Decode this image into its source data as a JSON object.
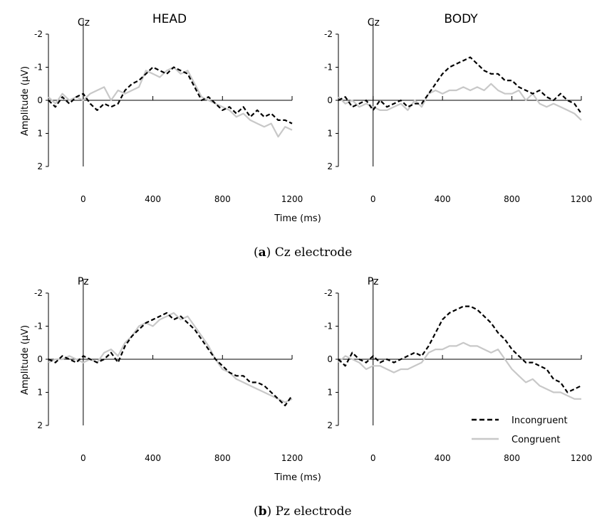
{
  "figure": {
    "column_titles": [
      "HEAD",
      "BODY"
    ],
    "y_axis_label": "Amplitude (μV)",
    "x_axis_label": "Time (ms)",
    "captions": [
      {
        "letter": "a",
        "text": "Cz electrode"
      },
      {
        "letter": "b",
        "text": "Pz electrode"
      }
    ],
    "legend": [
      {
        "label": "Incongruent",
        "style": "dashed",
        "color": "#000000"
      },
      {
        "label": "Congruent",
        "style": "solid",
        "color": "#c8c8c8"
      }
    ]
  },
  "chart_data": [
    {
      "type": "line",
      "electrode": "Cz",
      "column": "HEAD",
      "xlim": [
        -200,
        1200
      ],
      "ylim": [
        -2,
        2
      ],
      "y_inverted": true,
      "x_ticks": [
        0,
        400,
        800,
        1200
      ],
      "y_ticks": [
        -2,
        -1,
        0,
        1,
        2
      ],
      "x": [
        -200,
        -160,
        -120,
        -80,
        -40,
        0,
        40,
        80,
        120,
        160,
        200,
        240,
        280,
        320,
        360,
        400,
        440,
        480,
        520,
        560,
        600,
        640,
        680,
        720,
        760,
        800,
        840,
        880,
        920,
        960,
        1000,
        1040,
        1080,
        1120,
        1160,
        1200
      ],
      "series": [
        {
          "name": "Incongruent",
          "values": [
            0.0,
            0.2,
            -0.1,
            0.1,
            -0.1,
            -0.2,
            0.1,
            0.3,
            0.1,
            0.2,
            0.1,
            -0.3,
            -0.5,
            -0.6,
            -0.8,
            -1.0,
            -0.9,
            -0.8,
            -1.0,
            -0.9,
            -0.8,
            -0.4,
            0.0,
            -0.1,
            0.1,
            0.3,
            0.2,
            0.4,
            0.2,
            0.5,
            0.3,
            0.5,
            0.4,
            0.6,
            0.6,
            0.7
          ]
        },
        {
          "name": "Congruent",
          "values": [
            -0.1,
            0.1,
            -0.2,
            0.0,
            -0.1,
            0.0,
            -0.2,
            -0.3,
            -0.4,
            0.0,
            -0.3,
            -0.2,
            -0.3,
            -0.4,
            -0.9,
            -0.8,
            -0.7,
            -0.9,
            -1.0,
            -0.8,
            -0.9,
            -0.5,
            -0.1,
            0.0,
            0.1,
            0.2,
            0.3,
            0.5,
            0.4,
            0.6,
            0.7,
            0.8,
            0.7,
            1.1,
            0.8,
            0.9
          ]
        }
      ]
    },
    {
      "type": "line",
      "electrode": "Cz",
      "column": "BODY",
      "xlim": [
        -200,
        1200
      ],
      "ylim": [
        -2,
        2
      ],
      "y_inverted": true,
      "x_ticks": [
        0,
        400,
        800,
        1200
      ],
      "y_ticks": [
        -2,
        -1,
        0,
        1,
        2
      ],
      "x": [
        -200,
        -160,
        -120,
        -80,
        -40,
        0,
        40,
        80,
        120,
        160,
        200,
        240,
        280,
        320,
        360,
        400,
        440,
        480,
        520,
        560,
        600,
        640,
        680,
        720,
        760,
        800,
        840,
        880,
        920,
        960,
        1000,
        1040,
        1080,
        1120,
        1160,
        1200
      ],
      "series": [
        {
          "name": "Incongruent",
          "values": [
            0.0,
            -0.1,
            0.2,
            0.1,
            0.0,
            0.3,
            0.0,
            0.2,
            0.1,
            0.0,
            0.2,
            0.1,
            0.1,
            -0.2,
            -0.5,
            -0.8,
            -1.0,
            -1.1,
            -1.2,
            -1.3,
            -1.1,
            -0.9,
            -0.8,
            -0.8,
            -0.6,
            -0.6,
            -0.4,
            -0.3,
            -0.2,
            -0.3,
            -0.1,
            0.0,
            -0.2,
            0.0,
            0.1,
            0.4
          ]
        },
        {
          "name": "Congruent",
          "values": [
            -0.1,
            0.1,
            0.0,
            0.2,
            0.1,
            0.2,
            0.3,
            0.3,
            0.2,
            0.1,
            0.3,
            0.0,
            0.2,
            -0.2,
            -0.3,
            -0.2,
            -0.3,
            -0.3,
            -0.4,
            -0.3,
            -0.4,
            -0.3,
            -0.5,
            -0.3,
            -0.2,
            -0.2,
            -0.3,
            0.0,
            -0.2,
            0.1,
            0.2,
            0.1,
            0.2,
            0.3,
            0.4,
            0.6
          ]
        }
      ]
    },
    {
      "type": "line",
      "electrode": "Pz",
      "column": "HEAD",
      "xlim": [
        -200,
        1200
      ],
      "ylim": [
        -2,
        2
      ],
      "y_inverted": true,
      "x_ticks": [
        0,
        400,
        800,
        1200
      ],
      "y_ticks": [
        -2,
        -1,
        0,
        1,
        2
      ],
      "x": [
        -200,
        -160,
        -120,
        -80,
        -40,
        0,
        40,
        80,
        120,
        160,
        200,
        240,
        280,
        320,
        360,
        400,
        440,
        480,
        520,
        560,
        600,
        640,
        680,
        720,
        760,
        800,
        840,
        880,
        920,
        960,
        1000,
        1040,
        1080,
        1120,
        1160,
        1200
      ],
      "series": [
        {
          "name": "Incongruent",
          "values": [
            0.0,
            0.1,
            -0.1,
            0.0,
            0.1,
            -0.1,
            0.0,
            0.1,
            0.0,
            -0.2,
            0.1,
            -0.4,
            -0.7,
            -0.9,
            -1.1,
            -1.2,
            -1.3,
            -1.4,
            -1.2,
            -1.3,
            -1.1,
            -0.9,
            -0.6,
            -0.3,
            0.0,
            0.2,
            0.4,
            0.5,
            0.5,
            0.7,
            0.7,
            0.8,
            1.0,
            1.2,
            1.4,
            1.1
          ]
        },
        {
          "name": "Congruent",
          "values": [
            0.1,
            0.0,
            0.0,
            -0.1,
            0.0,
            0.1,
            0.0,
            0.1,
            -0.2,
            -0.3,
            -0.1,
            -0.5,
            -0.7,
            -1.0,
            -1.1,
            -1.0,
            -1.2,
            -1.3,
            -1.4,
            -1.2,
            -1.3,
            -1.0,
            -0.7,
            -0.4,
            0.0,
            0.3,
            0.4,
            0.6,
            0.7,
            0.8,
            0.9,
            1.0,
            1.1,
            1.2,
            1.3,
            1.2
          ]
        }
      ]
    },
    {
      "type": "line",
      "electrode": "Pz",
      "column": "BODY",
      "xlim": [
        -200,
        1200
      ],
      "ylim": [
        -2,
        2
      ],
      "y_inverted": true,
      "x_ticks": [
        0,
        400,
        800,
        1200
      ],
      "y_ticks": [
        -2,
        -1,
        0,
        1,
        2
      ],
      "x": [
        -200,
        -160,
        -120,
        -80,
        -40,
        0,
        40,
        80,
        120,
        160,
        200,
        240,
        280,
        320,
        360,
        400,
        440,
        480,
        520,
        560,
        600,
        640,
        680,
        720,
        760,
        800,
        840,
        880,
        920,
        960,
        1000,
        1040,
        1080,
        1120,
        1160,
        1200
      ],
      "series": [
        {
          "name": "Incongruent",
          "values": [
            0.0,
            0.2,
            -0.2,
            0.0,
            0.1,
            -0.1,
            0.1,
            0.0,
            0.1,
            0.0,
            -0.1,
            -0.2,
            -0.1,
            -0.4,
            -0.8,
            -1.2,
            -1.4,
            -1.5,
            -1.6,
            -1.6,
            -1.5,
            -1.3,
            -1.1,
            -0.8,
            -0.6,
            -0.3,
            -0.1,
            0.1,
            0.1,
            0.2,
            0.3,
            0.6,
            0.7,
            1.0,
            0.9,
            0.8
          ]
        },
        {
          "name": "Congruent",
          "values": [
            0.1,
            -0.1,
            0.0,
            0.1,
            0.3,
            0.2,
            0.2,
            0.3,
            0.4,
            0.3,
            0.3,
            0.2,
            0.1,
            -0.2,
            -0.3,
            -0.3,
            -0.4,
            -0.4,
            -0.5,
            -0.4,
            -0.4,
            -0.3,
            -0.2,
            -0.3,
            0.0,
            0.3,
            0.5,
            0.7,
            0.6,
            0.8,
            0.9,
            1.0,
            1.0,
            1.1,
            1.2,
            1.2
          ]
        }
      ]
    }
  ]
}
